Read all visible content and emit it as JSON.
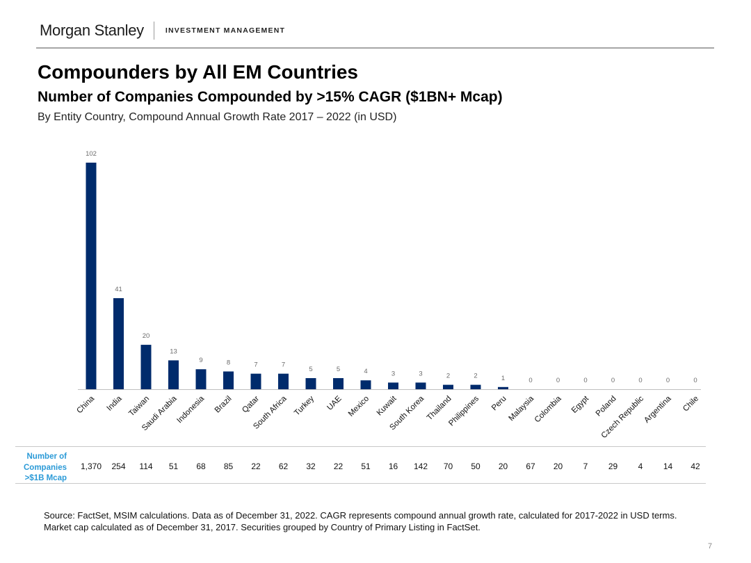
{
  "header": {
    "brand_name": "Morgan Stanley",
    "brand_division": "INVESTMENT MANAGEMENT"
  },
  "title": "Compounders by All EM Countries",
  "subtitle": "Number of Companies Compounded by >15% CAGR ($1BN+ Mcap)",
  "description": "By Entity Country, Compound Annual Growth Rate 2017 – 2022 (in USD)",
  "chart_data": {
    "type": "bar",
    "categories": [
      "China",
      "India",
      "Taiwan",
      "Saudi Arabia",
      "Indonesia",
      "Brazil",
      "Qatar",
      "South Africa",
      "Turkey",
      "UAE",
      "Mexico",
      "Kuwait",
      "South Korea",
      "Thailand",
      "Philippines",
      "Peru",
      "Malaysia",
      "Colombia",
      "Egypt",
      "Poland",
      "Czech Republic",
      "Argentina",
      "Chile"
    ],
    "values": [
      102,
      41,
      20,
      13,
      9,
      8,
      7,
      7,
      5,
      5,
      4,
      3,
      3,
      2,
      2,
      1,
      0,
      0,
      0,
      0,
      0,
      0,
      0
    ],
    "ylim": [
      0,
      102
    ],
    "grid": false,
    "legend": "none",
    "bar_color": "#002b6c"
  },
  "table": {
    "row_label_lines": [
      "Number of",
      "Companies",
      ">$1B Mcap"
    ],
    "values": [
      "1,370",
      "254",
      "114",
      "51",
      "68",
      "85",
      "22",
      "62",
      "32",
      "22",
      "51",
      "16",
      "142",
      "70",
      "50",
      "20",
      "67",
      "20",
      "7",
      "29",
      "4",
      "14",
      "42"
    ],
    "label_color": "#2b9ad7"
  },
  "source_lines": [
    "Source: FactSet, MSIM calculations. Data as of December 31, 2022. CAGR represents compound annual growth rate, calculated for 2017-2022 in USD terms.",
    "Market cap calculated as of December 31, 2017. Securities grouped by Country of Primary Listing in FactSet."
  ],
  "page_number": "7"
}
